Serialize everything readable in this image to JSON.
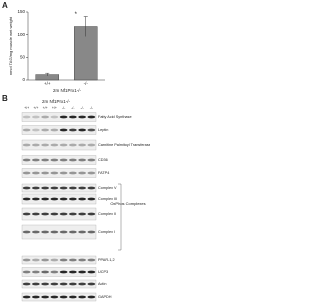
{
  "panel_a": "A",
  "panel_b": "B",
  "chart_data": {
    "type": "bar",
    "ylabel": "nmol TAG/mg muscle wet weight",
    "xlabel": "2m Nf1Prx1-/-",
    "categories": [
      "+/+",
      "-/-"
    ],
    "values": [
      12,
      118
    ],
    "errors": [
      3,
      22
    ],
    "color": "#888888",
    "ylim": [
      0,
      150
    ],
    "yticks": [
      0,
      50,
      100,
      150
    ],
    "annotation": "*"
  },
  "blot": {
    "header": "2m Nf1Prx1-/-",
    "genotypes": [
      "+/+",
      "+/+",
      "+/+",
      "+/+",
      "-/-",
      "-/-",
      "-/-",
      "-/-"
    ],
    "rows": [
      "Fatty Acid Synthase",
      "Leptin",
      "Carnitine Palmitoyl Transferase-1",
      "CD36",
      "FATP4",
      "Complex V",
      "Complex III",
      "Complex II",
      "Complex I",
      "PPAR-1,2",
      "UCP3",
      "Actin",
      "GAPDH"
    ],
    "group_label": "OxPhos Complexes"
  }
}
